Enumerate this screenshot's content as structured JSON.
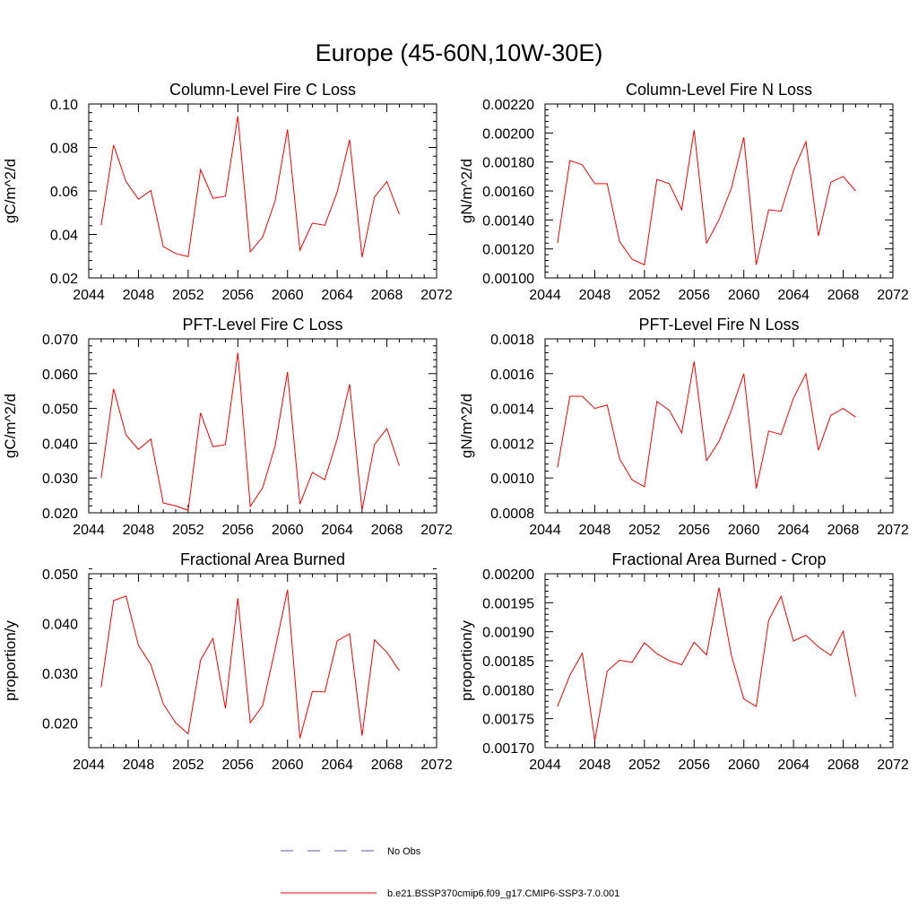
{
  "figure": {
    "title": "Europe (45-60N,10W-30E)",
    "line_color": "#ff0000",
    "obs_color": "#5a5aa8"
  },
  "legend": {
    "items": [
      {
        "label": "No Obs",
        "style": "dashed",
        "color": "#5a5aa8"
      },
      {
        "label": "b.e21.BSSP370cmip6.f09_g17.CMIP6-SSP3-7.0.001",
        "style": "solid",
        "color": "#ff0000"
      }
    ]
  },
  "chart_data": [
    {
      "type": "line",
      "title": "Column-Level Fire C Loss",
      "ylabel": "gC/m^2/d",
      "xlim": [
        2044,
        2072
      ],
      "ylim": [
        0.02,
        0.1
      ],
      "xticks": [
        2044,
        2048,
        2052,
        2056,
        2060,
        2064,
        2068,
        2072
      ],
      "xtick_labels": [
        "2044",
        "2048",
        "2052",
        "2056",
        "2060",
        "2064",
        "2068",
        "2072"
      ],
      "yticks": [
        0.02,
        0.04,
        0.06,
        0.08,
        0.1
      ],
      "ytick_labels": [
        "0.02",
        "0.04",
        "0.06",
        "0.08",
        "0.10"
      ],
      "x": [
        2045,
        2046,
        2047,
        2048,
        2049,
        2050,
        2051,
        2052,
        2053,
        2054,
        2055,
        2056,
        2057,
        2058,
        2059,
        2060,
        2061,
        2062,
        2063,
        2064,
        2065,
        2066,
        2067,
        2068,
        2069
      ],
      "series": [
        {
          "name": "b.e21.BSSP370cmip6.f09_g17.CMIP6-SSP3-7.0.001",
          "values": [
            0.0442,
            0.0811,
            0.0643,
            0.0562,
            0.0602,
            0.0344,
            0.0312,
            0.0298,
            0.0698,
            0.0566,
            0.0576,
            0.0944,
            0.032,
            0.0388,
            0.0554,
            0.0883,
            0.0328,
            0.0452,
            0.0442,
            0.0595,
            0.0836,
            0.0295,
            0.0572,
            0.0643,
            0.0493
          ]
        }
      ]
    },
    {
      "type": "line",
      "title": "Column-Level Fire N Loss",
      "ylabel": "gN/m^2/d",
      "xlim": [
        2044,
        2072
      ],
      "ylim": [
        0.001,
        0.0022
      ],
      "xticks": [
        2044,
        2048,
        2052,
        2056,
        2060,
        2064,
        2068,
        2072
      ],
      "xtick_labels": [
        "2044",
        "2048",
        "2052",
        "2056",
        "2060",
        "2064",
        "2068",
        "2072"
      ],
      "yticks": [
        0.001,
        0.0012,
        0.0014,
        0.0016,
        0.0018,
        0.002,
        0.0022
      ],
      "ytick_labels": [
        "0.00100",
        "0.00120",
        "0.00140",
        "0.00160",
        "0.00180",
        "0.00200",
        "0.00220"
      ],
      "x": [
        2045,
        2046,
        2047,
        2048,
        2049,
        2050,
        2051,
        2052,
        2053,
        2054,
        2055,
        2056,
        2057,
        2058,
        2059,
        2060,
        2061,
        2062,
        2063,
        2064,
        2065,
        2066,
        2067,
        2068,
        2069
      ],
      "series": [
        {
          "name": "b.e21.BSSP370cmip6.f09_g17.CMIP6-SSP3-7.0.001",
          "values": [
            0.00124,
            0.00181,
            0.00178,
            0.00165,
            0.00165,
            0.00125,
            0.00113,
            0.00109,
            0.00168,
            0.00165,
            0.00147,
            0.00202,
            0.00124,
            0.0014,
            0.00162,
            0.00197,
            0.00109,
            0.00147,
            0.00146,
            0.00174,
            0.00194,
            0.00129,
            0.00166,
            0.0017,
            0.0016
          ]
        }
      ]
    },
    {
      "type": "line",
      "title": "PFT-Level Fire C Loss",
      "ylabel": "gC/m^2/d",
      "xlim": [
        2044,
        2072
      ],
      "ylim": [
        0.02,
        0.07
      ],
      "xticks": [
        2044,
        2048,
        2052,
        2056,
        2060,
        2064,
        2068,
        2072
      ],
      "xtick_labels": [
        "2044",
        "2048",
        "2052",
        "2056",
        "2060",
        "2064",
        "2068",
        "2072"
      ],
      "yticks": [
        0.02,
        0.03,
        0.04,
        0.05,
        0.06,
        0.07
      ],
      "ytick_labels": [
        "0.020",
        "0.030",
        "0.040",
        "0.050",
        "0.060",
        "0.070"
      ],
      "x": [
        2045,
        2046,
        2047,
        2048,
        2049,
        2050,
        2051,
        2052,
        2053,
        2054,
        2055,
        2056,
        2057,
        2058,
        2059,
        2060,
        2061,
        2062,
        2063,
        2064,
        2065,
        2066,
        2067,
        2068,
        2069
      ],
      "series": [
        {
          "name": "b.e21.BSSP370cmip6.f09_g17.CMIP6-SSP3-7.0.001",
          "values": [
            0.03,
            0.0556,
            0.0424,
            0.0382,
            0.0412,
            0.0228,
            0.022,
            0.0207,
            0.0487,
            0.039,
            0.0396,
            0.066,
            0.0218,
            0.0272,
            0.0392,
            0.0605,
            0.0225,
            0.0316,
            0.0295,
            0.0412,
            0.057,
            0.0207,
            0.0396,
            0.0442,
            0.0335
          ]
        }
      ]
    },
    {
      "type": "line",
      "title": "PFT-Level Fire N Loss",
      "ylabel": "gN/m^2/d",
      "xlim": [
        2044,
        2072
      ],
      "ylim": [
        0.0008,
        0.0018
      ],
      "xticks": [
        2044,
        2048,
        2052,
        2056,
        2060,
        2064,
        2068,
        2072
      ],
      "xtick_labels": [
        "2044",
        "2048",
        "2052",
        "2056",
        "2060",
        "2064",
        "2068",
        "2072"
      ],
      "yticks": [
        0.0008,
        0.001,
        0.0012,
        0.0014,
        0.0016,
        0.0018
      ],
      "ytick_labels": [
        "0.0008",
        "0.0010",
        "0.0012",
        "0.0014",
        "0.0016",
        "0.0018"
      ],
      "x": [
        2045,
        2046,
        2047,
        2048,
        2049,
        2050,
        2051,
        2052,
        2053,
        2054,
        2055,
        2056,
        2057,
        2058,
        2059,
        2060,
        2061,
        2062,
        2063,
        2064,
        2065,
        2066,
        2067,
        2068,
        2069
      ],
      "series": [
        {
          "name": "b.e21.BSSP370cmip6.f09_g17.CMIP6-SSP3-7.0.001",
          "values": [
            0.00106,
            0.00147,
            0.00147,
            0.0014,
            0.00142,
            0.00111,
            0.00099,
            0.00095,
            0.00144,
            0.00139,
            0.00126,
            0.00167,
            0.0011,
            0.00121,
            0.00139,
            0.0016,
            0.00094,
            0.00127,
            0.00125,
            0.00146,
            0.0016,
            0.00116,
            0.00136,
            0.0014,
            0.00135
          ]
        }
      ]
    },
    {
      "type": "line",
      "title": "Fractional Area Burned",
      "ylabel": "proportion/y",
      "xlim": [
        2044,
        2072
      ],
      "ylim": [
        0.015,
        0.05
      ],
      "xticks": [
        2044,
        2048,
        2052,
        2056,
        2060,
        2064,
        2068,
        2072
      ],
      "xtick_labels": [
        "2044",
        "2048",
        "2052",
        "2056",
        "2060",
        "2064",
        "2068",
        "2072"
      ],
      "yticks": [
        0.02,
        0.03,
        0.04,
        0.05
      ],
      "ytick_labels": [
        "0.020",
        "0.030",
        "0.040",
        "0.050"
      ],
      "x": [
        2045,
        2046,
        2047,
        2048,
        2049,
        2050,
        2051,
        2052,
        2053,
        2054,
        2055,
        2056,
        2057,
        2058,
        2059,
        2060,
        2061,
        2062,
        2063,
        2064,
        2065,
        2066,
        2067,
        2068,
        2069
      ],
      "series": [
        {
          "name": "b.e21.BSSP370cmip6.f09_g17.CMIP6-SSP3-7.0.001",
          "values": [
            0.0272,
            0.0446,
            0.0455,
            0.0356,
            0.0317,
            0.0238,
            0.02,
            0.0178,
            0.0326,
            0.037,
            0.0229,
            0.0451,
            0.02,
            0.0235,
            0.0348,
            0.0468,
            0.0169,
            0.0263,
            0.0262,
            0.0365,
            0.0379,
            0.0174,
            0.0367,
            0.0342,
            0.0305
          ]
        }
      ]
    },
    {
      "type": "line",
      "title": "Fractional Area Burned - Crop",
      "ylabel": "proportion/y",
      "xlim": [
        2044,
        2072
      ],
      "ylim": [
        0.0017,
        0.002
      ],
      "xticks": [
        2044,
        2048,
        2052,
        2056,
        2060,
        2064,
        2068,
        2072
      ],
      "xtick_labels": [
        "2044",
        "2048",
        "2052",
        "2056",
        "2060",
        "2064",
        "2068",
        "2072"
      ],
      "yticks": [
        0.0017,
        0.00175,
        0.0018,
        0.00185,
        0.0019,
        0.00195,
        0.002
      ],
      "ytick_labels": [
        "0.00170",
        "0.00175",
        "0.00180",
        "0.00185",
        "0.00190",
        "0.00195",
        "0.00200"
      ],
      "x": [
        2045,
        2046,
        2047,
        2048,
        2049,
        2050,
        2051,
        2052,
        2053,
        2054,
        2055,
        2056,
        2057,
        2058,
        2059,
        2060,
        2061,
        2062,
        2063,
        2064,
        2065,
        2066,
        2067,
        2068,
        2069
      ],
      "series": [
        {
          "name": "b.e21.BSSP370cmip6.f09_g17.CMIP6-SSP3-7.0.001",
          "values": [
            0.001771,
            0.001825,
            0.001863,
            0.001712,
            0.001832,
            0.001851,
            0.001847,
            0.001881,
            0.001862,
            0.00185,
            0.001843,
            0.001882,
            0.00186,
            0.001976,
            0.001859,
            0.001784,
            0.001771,
            0.00192,
            0.001961,
            0.001884,
            0.001894,
            0.001874,
            0.001859,
            0.001901,
            0.001788
          ]
        }
      ]
    }
  ]
}
